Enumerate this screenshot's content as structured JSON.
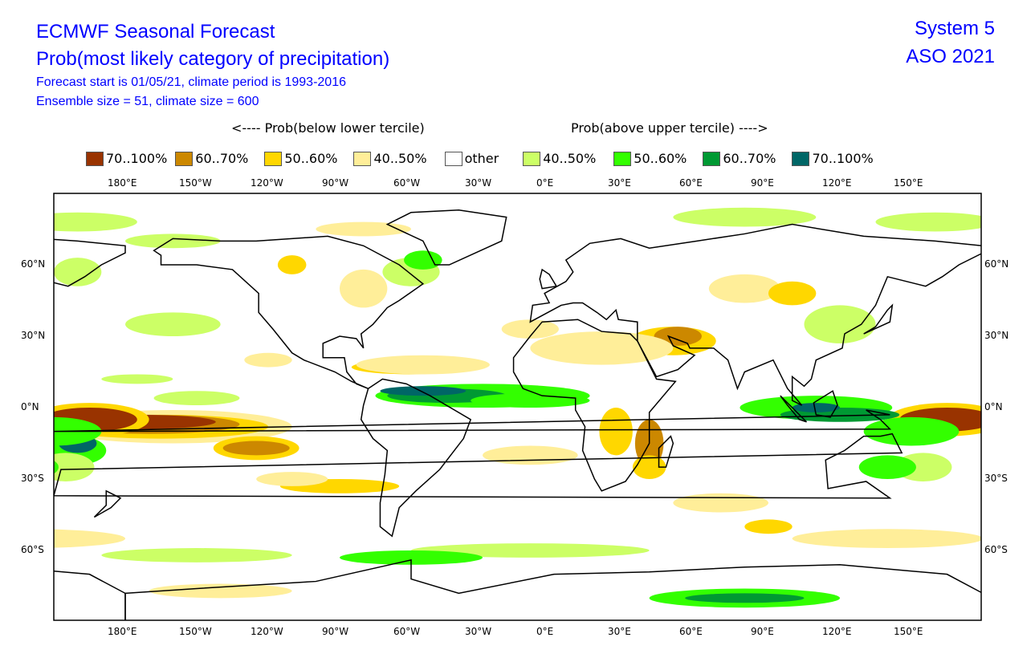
{
  "header": {
    "title": "ECMWF Seasonal Forecast",
    "subtitle": "Prob(most likely category of precipitation)",
    "info_line1": "Forecast start is 01/05/21, climate period is 1993-2016",
    "info_line2": "Ensemble size = 51, climate size = 600",
    "system": "System 5",
    "period": "ASO 2021"
  },
  "legend": {
    "below_label": "<---- Prob(below lower tercile)",
    "above_label": "Prob(above upper tercile) ---->",
    "items": [
      {
        "label": "70..100%",
        "color": "#993300"
      },
      {
        "label": "60..70%",
        "color": "#cc8800"
      },
      {
        "label": "50..60%",
        "color": "#ffd700"
      },
      {
        "label": "40..50%",
        "color": "#ffee99"
      },
      {
        "label": "other",
        "color": "#ffffff"
      },
      {
        "label": "40..50%",
        "color": "#ccff66"
      },
      {
        "label": "50..60%",
        "color": "#33ff00"
      },
      {
        "label": "60..70%",
        "color": "#009933"
      },
      {
        "label": "70..100%",
        "color": "#006666"
      }
    ]
  },
  "map": {
    "lon_ticks": [
      "180°E",
      "150°W",
      "120°W",
      "90°W",
      "60°W",
      "30°W",
      "0°E",
      "30°E",
      "60°E",
      "90°E",
      "120°E",
      "150°E"
    ],
    "lat_ticks": [
      "60°N",
      "30°N",
      "0°N",
      "30°S",
      "60°S"
    ]
  }
}
